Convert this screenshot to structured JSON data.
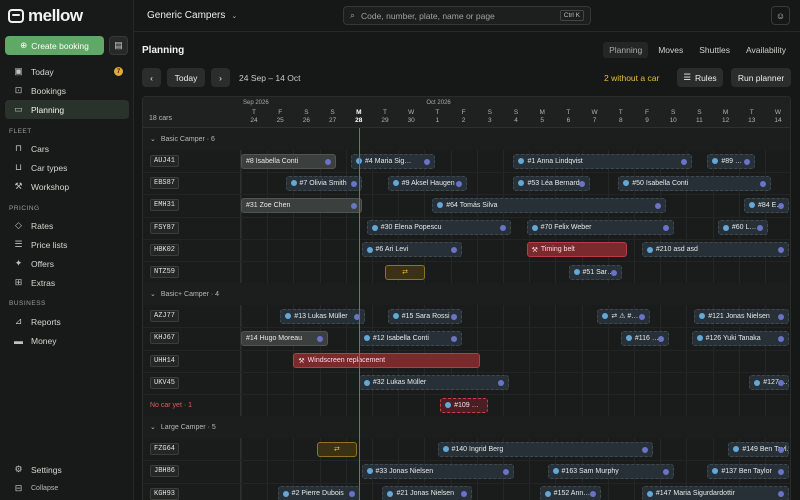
{
  "sidebar": {
    "brand": "mellow",
    "create": "Create booking",
    "main": [
      {
        "label": "Today",
        "icon": "calendar-icon",
        "badge": "7"
      },
      {
        "label": "Bookings",
        "icon": "inbox-icon"
      },
      {
        "label": "Planning",
        "icon": "planning-icon",
        "active": true
      }
    ],
    "fleet_title": "FLEET",
    "fleet": [
      {
        "label": "Cars",
        "icon": "car-icon"
      },
      {
        "label": "Car types",
        "icon": "car-type-icon"
      },
      {
        "label": "Workshop",
        "icon": "wrench-icon"
      }
    ],
    "pricing_title": "PRICING",
    "pricing": [
      {
        "label": "Rates",
        "icon": "tag-icon"
      },
      {
        "label": "Price lists",
        "icon": "list-icon"
      },
      {
        "label": "Offers",
        "icon": "offer-icon"
      },
      {
        "label": "Extras",
        "icon": "extras-icon"
      }
    ],
    "business_title": "BUSINESS",
    "business": [
      {
        "label": "Reports",
        "icon": "chart-icon"
      },
      {
        "label": "Money",
        "icon": "money-icon"
      }
    ],
    "settings": "Settings",
    "collapse": "Collapse"
  },
  "topbar": {
    "company": "Generic Campers",
    "search_placeholder": "Code, number, plate, name or page",
    "shortcut": "Ctrl K"
  },
  "header": {
    "title": "Planning",
    "tabs": [
      "Planning",
      "Moves",
      "Shuttles",
      "Availability"
    ],
    "active_tab": "Planning",
    "today": "Today",
    "range": "24 Sep – 14 Oct",
    "no_car": "2 without a car",
    "rules": "Rules",
    "run_planner": "Run planner"
  },
  "grid": {
    "cars_count": "18 cars",
    "months": [
      {
        "label": "Sep 2026",
        "day_index": 0
      },
      {
        "label": "Oct 2026",
        "day_index": 7
      }
    ],
    "days": [
      {
        "d": "T",
        "n": "24"
      },
      {
        "d": "F",
        "n": "25"
      },
      {
        "d": "S",
        "n": "26"
      },
      {
        "d": "S",
        "n": "27"
      },
      {
        "d": "M",
        "n": "28",
        "today": true
      },
      {
        "d": "T",
        "n": "29"
      },
      {
        "d": "W",
        "n": "30"
      },
      {
        "d": "T",
        "n": "1"
      },
      {
        "d": "F",
        "n": "2"
      },
      {
        "d": "S",
        "n": "3"
      },
      {
        "d": "S",
        "n": "4"
      },
      {
        "d": "M",
        "n": "5"
      },
      {
        "d": "T",
        "n": "6"
      },
      {
        "d": "W",
        "n": "7"
      },
      {
        "d": "T",
        "n": "8"
      },
      {
        "d": "F",
        "n": "9"
      },
      {
        "d": "S",
        "n": "10"
      },
      {
        "d": "S",
        "n": "11"
      },
      {
        "d": "M",
        "n": "12"
      },
      {
        "d": "T",
        "n": "13"
      },
      {
        "d": "W",
        "n": "14"
      }
    ],
    "rows": [
      {
        "type": "group",
        "label": "Basic Camper · 6"
      },
      {
        "type": "car",
        "plate": "AUJ41",
        "bookings": [
          {
            "label": "#8 Isabella Conti",
            "start": 0,
            "end": 3.7,
            "kind": "past"
          },
          {
            "label": "#4 Maria Sig…",
            "start": 4.2,
            "end": 7.5
          },
          {
            "label": "#1 Anna Lindqvist",
            "start": 10.4,
            "end": 17.3
          },
          {
            "label": "#89 …",
            "start": 17.8,
            "end": 19.7
          }
        ]
      },
      {
        "type": "car",
        "plate": "EBS87",
        "bookings": [
          {
            "label": "#7 Olivia Smith",
            "start": 1.7,
            "end": 4.7
          },
          {
            "label": "#9 Aksel Haugen",
            "start": 5.6,
            "end": 8.7
          },
          {
            "label": "#53 Léa Bernard",
            "start": 10.4,
            "end": 13.4
          },
          {
            "label": "#50 Isabella Conti",
            "start": 14.4,
            "end": 20.3
          }
        ]
      },
      {
        "type": "car",
        "plate": "EMH31",
        "bookings": [
          {
            "label": "#31 Zoe Chen",
            "start": 0,
            "end": 4.7,
            "kind": "past"
          },
          {
            "label": "#64 Tomás Silva",
            "start": 7.3,
            "end": 16.3
          },
          {
            "label": "#84 E…",
            "start": 19.2,
            "end": 21
          }
        ]
      },
      {
        "type": "car",
        "plate": "FSY87",
        "bookings": [
          {
            "label": "#30 Elena Popescu",
            "start": 4.8,
            "end": 10.4
          },
          {
            "label": "#70 Felix Weber",
            "start": 10.9,
            "end": 16.6
          },
          {
            "label": "#60 L…",
            "start": 18.2,
            "end": 20.2
          }
        ]
      },
      {
        "type": "car",
        "plate": "HBK02",
        "bookings": [
          {
            "label": "#6 Ari Levi",
            "start": 4.6,
            "end": 8.5
          },
          {
            "label": "Timing belt",
            "start": 10.9,
            "end": 14.8,
            "kind": "red"
          },
          {
            "label": "#210 asd asd",
            "start": 15.3,
            "end": 21
          }
        ]
      },
      {
        "type": "car",
        "plate": "NTZ59",
        "bookings": [
          {
            "label": "⇄",
            "start": 5.5,
            "end": 7.1,
            "kind": "yellow"
          },
          {
            "label": "#51 Sar…",
            "start": 12.5,
            "end": 14.6
          }
        ]
      },
      {
        "type": "group",
        "label": "Basic+ Camper · 4"
      },
      {
        "type": "car",
        "plate": "AZJ77",
        "bookings": [
          {
            "label": "#13 Lukas Müller",
            "start": 1.5,
            "end": 4.8
          },
          {
            "label": "#15 Sara Rossi",
            "start": 5.6,
            "end": 8.5
          },
          {
            "label": "⇄ ⚠ #…",
            "start": 13.6,
            "end": 15.7
          },
          {
            "label": "#121 Jonas Nielsen",
            "start": 17.3,
            "end": 21
          }
        ]
      },
      {
        "type": "car",
        "plate": "KHJ67",
        "bookings": [
          {
            "label": "#14 Hugo Moreau",
            "start": 0,
            "end": 3.4,
            "kind": "past"
          },
          {
            "label": "#12 Isabella Conti",
            "start": 4.5,
            "end": 8.5
          },
          {
            "label": "#116 …",
            "start": 14.5,
            "end": 16.4
          },
          {
            "label": "#126 Yuki Tanaka",
            "start": 17.2,
            "end": 21
          }
        ]
      },
      {
        "type": "car",
        "plate": "UHH14",
        "bookings": [
          {
            "label": "Windscreen replacement",
            "start": 2,
            "end": 9.2,
            "kind": "red"
          }
        ]
      },
      {
        "type": "car",
        "plate": "UKV45",
        "bookings": [
          {
            "label": "#32 Lukas Müller",
            "start": 4.5,
            "end": 10.3
          },
          {
            "label": "#127 …",
            "start": 19.4,
            "end": 21
          }
        ]
      },
      {
        "type": "nocar",
        "plate": "No car yet · 1",
        "bookings": [
          {
            "label": "#109 …",
            "start": 7.6,
            "end": 9.5,
            "kind": "noc"
          }
        ]
      },
      {
        "type": "group",
        "label": "Large Camper · 5"
      },
      {
        "type": "car",
        "plate": "FZG64",
        "bookings": [
          {
            "label": "⇄",
            "start": 2.9,
            "end": 4.5,
            "kind": "yellow"
          },
          {
            "label": "#140 Ingrid Berg",
            "start": 7.5,
            "end": 15.8
          },
          {
            "label": "#149 Ben Tayl…",
            "start": 18.6,
            "end": 21
          }
        ]
      },
      {
        "type": "car",
        "plate": "JBH86",
        "bookings": [
          {
            "label": "#33 Jonas Nielsen",
            "start": 4.6,
            "end": 10.5
          },
          {
            "label": "#163 Sam Murphy",
            "start": 11.7,
            "end": 16.6
          },
          {
            "label": "#137 Ben Taylor",
            "start": 17.8,
            "end": 21
          }
        ]
      },
      {
        "type": "car",
        "plate": "KGH93",
        "bookings": [
          {
            "label": "#2 Pierre Dubois",
            "start": 1.4,
            "end": 4.6
          },
          {
            "label": "#21 Jonas Nielsen",
            "start": 5.4,
            "end": 8.9
          },
          {
            "label": "#152 Ann…",
            "start": 11.4,
            "end": 13.8
          },
          {
            "label": "#147 Maria Sigurdardottir",
            "start": 15.3,
            "end": 21
          }
        ]
      }
    ]
  }
}
